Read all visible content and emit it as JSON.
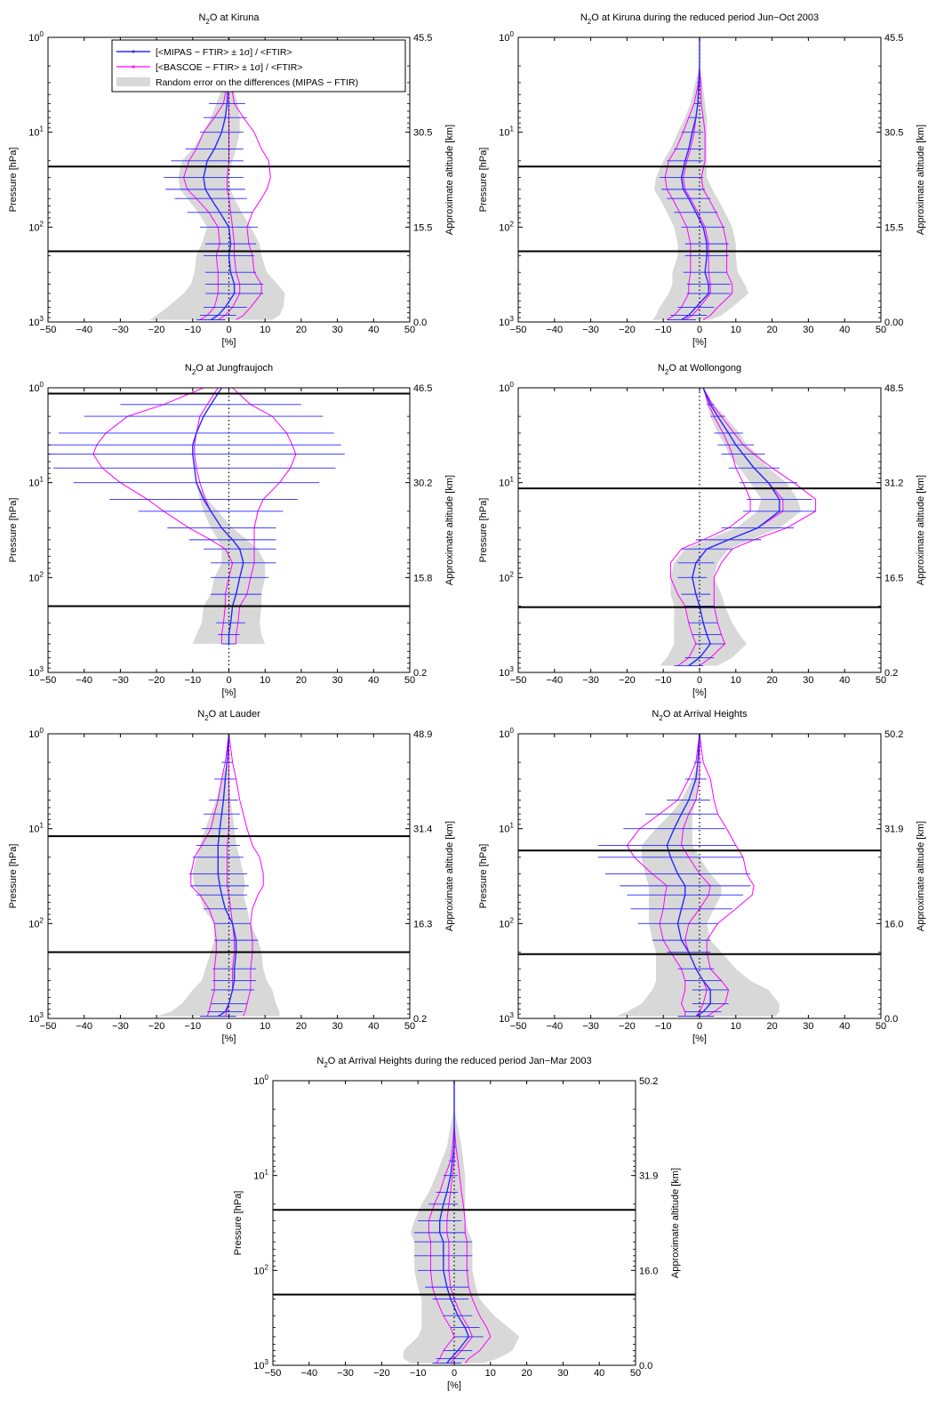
{
  "colors": {
    "mipas": "#2828ff",
    "bascoe": "#ff00ff",
    "random_error": "#d8d8d8",
    "ref_line": "#000000",
    "tropo_line": "#000000"
  },
  "legend": {
    "mipas": "[<MIPAS − FTIR> ± 1σ] / <FTIR>",
    "bascoe": "[<BASCOE − FTIR> ± 1σ] / <FTIR>",
    "random": "Random error on the differences (MIPAS − FTIR)"
  },
  "chart_data": [
    {
      "type": "line",
      "title": "N2O at Kiruna",
      "title_main": "N",
      "title_sub": "2",
      "title_rest": "O at Kiruna",
      "xlabel": "[%]",
      "ylabel": "Pressure [hPa]",
      "ylabel_right": "Approximate altitude [km]",
      "xlim": [
        -50,
        50
      ],
      "ylim": [
        1000,
        1
      ],
      "yscale": "log",
      "xticks": [
        "−50",
        "−40",
        "−30",
        "−20",
        "−10",
        "0",
        "10",
        "20",
        "30",
        "40",
        "50"
      ],
      "yticks": [
        {
          "base": "10",
          "exp": "0",
          "value": 1
        },
        {
          "base": "10",
          "exp": "1",
          "value": 10
        },
        {
          "base": "10",
          "exp": "2",
          "value": 100
        },
        {
          "base": "10",
          "exp": "3",
          "value": 1000
        }
      ],
      "right_ticks": [
        "45.5",
        "30.5",
        "15.5",
        "0.0"
      ],
      "hlines_hPa": [
        23,
        180
      ],
      "legend_placement": "top",
      "pressure": [
        1,
        2,
        3,
        5,
        7,
        10,
        15,
        20,
        30,
        40,
        50,
        70,
        100,
        150,
        200,
        300,
        400,
        500,
        700,
        850,
        950
      ],
      "mipas": [
        0,
        0,
        -0.3,
        -0.5,
        -1,
        -2,
        -4,
        -6,
        -7,
        -6.5,
        -5,
        -2.5,
        0,
        0.5,
        0,
        0.5,
        1.5,
        1.5,
        -1,
        -3,
        -5
      ],
      "mipas_sigma": [
        0,
        0,
        3,
        5,
        6,
        6,
        8,
        10,
        11,
        11,
        10,
        9,
        8,
        7,
        7,
        7,
        8,
        8,
        6,
        5,
        4
      ],
      "bascoe_mean": [
        0,
        0,
        0,
        0,
        0,
        0,
        0,
        0,
        -0.5,
        -0.5,
        0,
        0.5,
        1,
        1.5,
        1.5,
        2,
        3,
        3,
        1,
        -1,
        -3
      ],
      "bascoe_sigma": [
        0,
        0,
        0.5,
        1.5,
        4,
        7,
        9,
        11,
        12,
        11,
        9,
        6,
        4,
        4,
        5,
        5,
        6,
        6,
        5,
        5,
        5
      ],
      "random_error": [
        0,
        0,
        1,
        3,
        4,
        5,
        6,
        7,
        7,
        7,
        6.5,
        6,
        6,
        8,
        9,
        10,
        12,
        14,
        16,
        17,
        17
      ]
    },
    {
      "type": "line",
      "title": "N2O at Kiruna during the reduced period Jun−Oct 2003",
      "title_main": "N",
      "title_sub": "2",
      "title_rest": "O at Kiruna during the reduced period Jun−Oct 2003",
      "xlabel": "[%]",
      "ylabel": "Pressure [hPa]",
      "ylabel_right": "Approximate altitude [km]",
      "xlim": [
        -50,
        50
      ],
      "ylim": [
        1000,
        1
      ],
      "yscale": "log",
      "xticks": [
        "−50",
        "−40",
        "−30",
        "−20",
        "−10",
        "0",
        "10",
        "20",
        "30",
        "40",
        "50"
      ],
      "yticks": [
        {
          "base": "10",
          "exp": "0",
          "value": 1
        },
        {
          "base": "10",
          "exp": "1",
          "value": 10
        },
        {
          "base": "10",
          "exp": "2",
          "value": 100
        },
        {
          "base": "10",
          "exp": "3",
          "value": 1000
        }
      ],
      "right_ticks": [
        "45.5",
        "30.5",
        "15.5",
        "0.00"
      ],
      "hlines_hPa": [
        23,
        180
      ],
      "legend_placement": "none",
      "pressure": [
        1,
        2,
        3,
        5,
        7,
        10,
        15,
        20,
        30,
        40,
        50,
        70,
        100,
        150,
        200,
        300,
        400,
        500,
        700,
        850,
        950
      ],
      "mipas": [
        0,
        0,
        -0.2,
        -0.5,
        -1,
        -2,
        -3,
        -4,
        -5,
        -4.5,
        -3,
        -1,
        1,
        2,
        2,
        1.5,
        2.5,
        2.5,
        -1,
        -3,
        -5
      ],
      "mipas_sigma": [
        0,
        0,
        0.5,
        1,
        2,
        3,
        4,
        5,
        6,
        6,
        6,
        6,
        6,
        6,
        6,
        6,
        6,
        6,
        5,
        5,
        4
      ],
      "bascoe_mean": [
        0,
        0,
        0,
        -0.5,
        -1,
        -1.5,
        -2.5,
        -3.5,
        -4.5,
        -4,
        -2.5,
        -0.5,
        1.5,
        2.5,
        2.5,
        2.5,
        3,
        3,
        0,
        -2,
        -4
      ],
      "bascoe_sigma": [
        0,
        0,
        0.3,
        1,
        2,
        3,
        4,
        5,
        5,
        5,
        5,
        5,
        5,
        5,
        5,
        5,
        6,
        6,
        5,
        5,
        5
      ],
      "random_error": [
        0,
        0,
        1,
        2,
        3,
        4,
        5,
        6,
        7,
        8,
        8,
        8,
        8,
        8,
        8,
        9,
        10,
        11,
        10,
        9,
        8
      ]
    },
    {
      "type": "line",
      "title": "N2O at Jungfraujoch",
      "title_main": "N",
      "title_sub": "2",
      "title_rest": "O at Jungfraujoch",
      "xlabel": "[%]",
      "ylabel": "Pressure [hPa]",
      "ylabel_right": "Approximate altitude [km]",
      "xlim": [
        -50,
        50
      ],
      "ylim": [
        1000,
        1
      ],
      "yscale": "log",
      "xticks": [
        "−50",
        "−40",
        "−30",
        "−20",
        "−10",
        "0",
        "10",
        "20",
        "30",
        "40",
        "50"
      ],
      "yticks": [
        {
          "base": "10",
          "exp": "0",
          "value": 1
        },
        {
          "base": "10",
          "exp": "1",
          "value": 10
        },
        {
          "base": "10",
          "exp": "2",
          "value": 100
        },
        {
          "base": "10",
          "exp": "3",
          "value": 1000
        }
      ],
      "right_ticks": [
        "46.5",
        "30.2",
        "15.8",
        "0.2"
      ],
      "hlines_hPa": [
        1.15,
        200
      ],
      "legend_placement": "none",
      "pressure": [
        1,
        1.5,
        2,
        3,
        4,
        5,
        7,
        10,
        15,
        20,
        30,
        40,
        50,
        70,
        100,
        150,
        200,
        300,
        400,
        500
      ],
      "mipas": [
        -2,
        -5,
        -7,
        -9,
        -10,
        -10,
        -9.5,
        -9,
        -7,
        -5,
        -2,
        1,
        3,
        4,
        3,
        2,
        1,
        0.5,
        0,
        0
      ],
      "mipas_sigma": [
        15,
        25,
        33,
        38,
        41,
        42,
        39,
        34,
        26,
        20,
        15,
        12,
        10,
        9,
        8,
        7,
        5,
        4,
        3,
        2
      ],
      "bascoe_mean": [
        -3,
        -6,
        -8,
        -9,
        -9.5,
        -9.5,
        -9,
        -8,
        -6.5,
        -5,
        -2,
        1,
        3,
        4,
        3,
        2,
        1,
        0.5,
        0,
        0
      ],
      "bascoe_sigma": [
        4,
        12,
        20,
        25,
        27,
        28,
        26,
        22,
        16,
        13,
        9,
        6,
        4,
        3,
        3,
        3,
        2,
        2,
        2,
        2
      ],
      "random_error": [
        0,
        0,
        0,
        0,
        0,
        0,
        0,
        0,
        1,
        2,
        3,
        4,
        5,
        6,
        7,
        7,
        8,
        8,
        9,
        10
      ]
    },
    {
      "type": "line",
      "title": "N2O at Wollongong",
      "title_main": "N",
      "title_sub": "2",
      "title_rest": "O at Wollongong",
      "xlabel": "[%]",
      "ylabel": "Pressure [hPa]",
      "ylabel_right": "Approximate altitude [km]",
      "xlim": [
        -50,
        50
      ],
      "ylim": [
        1000,
        1
      ],
      "yscale": "log",
      "xticks": [
        "−50",
        "−40",
        "−30",
        "−20",
        "−10",
        "0",
        "10",
        "20",
        "30",
        "40",
        "50"
      ],
      "yticks": [
        {
          "base": "10",
          "exp": "0",
          "value": 1
        },
        {
          "base": "10",
          "exp": "1",
          "value": 10
        },
        {
          "base": "10",
          "exp": "2",
          "value": 100
        },
        {
          "base": "10",
          "exp": "3",
          "value": 1000
        }
      ],
      "right_ticks": [
        "48.5",
        "31.2",
        "16.5",
        "0.2"
      ],
      "hlines_hPa": [
        11.5,
        205
      ],
      "legend_placement": "none",
      "pressure": [
        1,
        1.5,
        2,
        3,
        4,
        5,
        7,
        10,
        15,
        20,
        30,
        40,
        50,
        70,
        100,
        150,
        200,
        300,
        400,
        500,
        700,
        850
      ],
      "mipas": [
        1,
        3,
        5,
        8,
        10,
        12,
        15,
        19,
        22,
        22,
        16,
        8,
        2,
        -1,
        -2,
        -1,
        0,
        1,
        2,
        3,
        0,
        -3
      ],
      "mipas_sigma": [
        0,
        1,
        2,
        4,
        5,
        6,
        7,
        8,
        9,
        10,
        10,
        9,
        7,
        5,
        4,
        4,
        4,
        4,
        4,
        4,
        4,
        4
      ],
      "bascoe_mean": [
        1,
        3,
        5,
        8,
        10,
        12,
        15,
        19,
        23,
        23,
        16,
        8,
        2,
        -1,
        -2,
        -1,
        0,
        1,
        2,
        3,
        0,
        -3
      ],
      "bascoe_sigma": [
        0,
        0.5,
        1,
        1.5,
        2,
        3,
        5,
        7,
        9,
        9,
        8,
        7,
        7,
        7,
        6,
        5,
        4,
        4,
        4,
        4,
        3,
        3
      ],
      "random_error": [
        0,
        1,
        2,
        3,
        3,
        4,
        4,
        5,
        5,
        6,
        6,
        6,
        6,
        6,
        6,
        7,
        7,
        8,
        9,
        10,
        9,
        8
      ]
    },
    {
      "type": "line",
      "title": "N2O at Lauder",
      "title_main": "N",
      "title_sub": "2",
      "title_rest": "O at Lauder",
      "xlabel": "[%]",
      "ylabel": "Pressure [hPa]",
      "ylabel_right": "Approximate altitude [km]",
      "xlim": [
        -50,
        50
      ],
      "ylim": [
        1000,
        1
      ],
      "yscale": "log",
      "xticks": [
        "−50",
        "−40",
        "−30",
        "−20",
        "−10",
        "0",
        "10",
        "20",
        "30",
        "40",
        "50"
      ],
      "yticks": [
        {
          "base": "10",
          "exp": "0",
          "value": 1
        },
        {
          "base": "10",
          "exp": "1",
          "value": 10
        },
        {
          "base": "10",
          "exp": "2",
          "value": 100
        },
        {
          "base": "10",
          "exp": "3",
          "value": 1000
        }
      ],
      "right_ticks": [
        "48.9",
        "31.4",
        "16.3",
        "0.2"
      ],
      "hlines_hPa": [
        12,
        200
      ],
      "legend_placement": "none",
      "pressure": [
        1,
        2,
        3,
        5,
        7,
        10,
        15,
        20,
        30,
        40,
        50,
        70,
        100,
        150,
        200,
        300,
        400,
        500,
        700,
        850,
        950
      ],
      "mipas": [
        0,
        -0.5,
        -1,
        -1.5,
        -2,
        -2.5,
        -3,
        -3,
        -3,
        -2.5,
        -2,
        -1,
        1,
        2,
        2,
        1.5,
        1.5,
        1,
        0,
        -1,
        -3
      ],
      "mipas_sigma": [
        0,
        1.5,
        3,
        4,
        5,
        5,
        6,
        7,
        8,
        8,
        7,
        6,
        5,
        6,
        6,
        6,
        6,
        6,
        5,
        5,
        5
      ],
      "bascoe_mean": [
        0,
        0,
        0,
        0,
        0,
        0,
        -0.5,
        -0.5,
        -0.5,
        -0.5,
        0,
        0.5,
        1,
        1.5,
        1.5,
        1,
        1,
        1,
        0,
        -0.5,
        -1
      ],
      "bascoe_sigma": [
        0,
        1,
        2,
        3,
        4,
        5,
        7,
        9,
        10,
        10,
        8,
        6,
        5,
        5,
        5,
        5,
        5,
        5,
        5,
        5,
        5
      ],
      "random_error": [
        0,
        0,
        1,
        2,
        3,
        4,
        5,
        6,
        7,
        7,
        6,
        6,
        5,
        6,
        7,
        8,
        9,
        11,
        13,
        15,
        17
      ]
    },
    {
      "type": "line",
      "title": "N2O at Arrival Heights",
      "title_main": "N",
      "title_sub": "2",
      "title_rest": "O at Arrival Heights",
      "xlabel": "[%]",
      "ylabel": "Pressure [hPa]",
      "ylabel_right": "Approximate altitude [km]",
      "xlim": [
        -50,
        50
      ],
      "ylim": [
        1000,
        1
      ],
      "yscale": "log",
      "xticks": [
        "−50",
        "−40",
        "−30",
        "−20",
        "−10",
        "0",
        "10",
        "20",
        "30",
        "40",
        "50"
      ],
      "yticks": [
        {
          "base": "10",
          "exp": "0",
          "value": 1
        },
        {
          "base": "10",
          "exp": "1",
          "value": 10
        },
        {
          "base": "10",
          "exp": "2",
          "value": 100
        },
        {
          "base": "10",
          "exp": "3",
          "value": 1000
        }
      ],
      "right_ticks": [
        "50.2",
        "31.9",
        "16.0",
        "0.0"
      ],
      "hlines_hPa": [
        17,
        210
      ],
      "legend_placement": "none",
      "pressure": [
        1,
        2,
        3,
        5,
        7,
        10,
        15,
        20,
        30,
        40,
        50,
        70,
        100,
        150,
        200,
        300,
        400,
        500,
        700,
        850,
        950
      ],
      "mipas": [
        0,
        -0.5,
        -1,
        -3,
        -5,
        -7,
        -9,
        -8,
        -6,
        -4,
        -4,
        -5,
        -6,
        -5,
        -3,
        -1,
        1,
        3,
        3,
        1,
        -1
      ],
      "mipas_sigma": [
        0,
        1,
        3,
        6,
        10,
        14,
        19,
        20,
        20,
        18,
        16,
        14,
        11,
        8,
        6,
        5,
        5,
        5,
        5,
        5,
        5
      ],
      "bascoe_mean": [
        0,
        0,
        0,
        -1,
        -3,
        -4.5,
        -5,
        -3,
        0,
        3,
        2.5,
        0,
        -3,
        -4,
        -3,
        -1,
        1,
        2,
        1,
        0,
        -1
      ],
      "bascoe_sigma": [
        0,
        1,
        3,
        5,
        8,
        12,
        15,
        15,
        13,
        12,
        12,
        10,
        8,
        6,
        5,
        4,
        5,
        6,
        6,
        4,
        3
      ],
      "random_error": [
        0,
        0,
        1,
        2,
        3,
        5,
        7,
        8,
        9,
        10,
        10,
        9,
        8,
        8,
        9,
        11,
        13,
        16,
        19,
        21,
        22
      ]
    },
    {
      "type": "line",
      "title": "N2O at Arrival Heights during the reduced period Jan−Mar 2003",
      "title_main": "N",
      "title_sub": "2",
      "title_rest": "O at Arrival Heights during the reduced period Jan−Mar 2003",
      "xlabel": "[%]",
      "ylabel": "Pressure [hPa]",
      "ylabel_right": "Approximate altitude [km]",
      "xlim": [
        -50,
        50
      ],
      "ylim": [
        1000,
        1
      ],
      "yscale": "log",
      "xticks": [
        "−50",
        "−40",
        "−30",
        "−20",
        "−10",
        "0",
        "10",
        "20",
        "30",
        "40",
        "50"
      ],
      "yticks": [
        {
          "base": "10",
          "exp": "0",
          "value": 1
        },
        {
          "base": "10",
          "exp": "1",
          "value": 10
        },
        {
          "base": "10",
          "exp": "2",
          "value": 100
        },
        {
          "base": "10",
          "exp": "3",
          "value": 1000
        }
      ],
      "right_ticks": [
        "50.2",
        "31.9",
        "16.0",
        "0.0"
      ],
      "hlines_hPa": [
        23,
        180
      ],
      "legend_placement": "none",
      "pressure": [
        1,
        2,
        3,
        5,
        7,
        10,
        15,
        20,
        30,
        40,
        50,
        70,
        100,
        150,
        200,
        300,
        400,
        500,
        700,
        850,
        950
      ],
      "mipas": [
        0,
        0,
        0,
        0,
        -0.5,
        -1,
        -2,
        -3,
        -4,
        -4,
        -3,
        -3,
        -3,
        -2,
        -1,
        1,
        3,
        4,
        1,
        -1,
        -2
      ],
      "mipas_sigma": [
        0,
        0,
        0,
        0.5,
        1,
        2,
        3,
        4,
        6,
        7,
        8,
        8,
        7,
        6,
        5,
        4,
        4,
        4,
        4,
        4,
        4
      ],
      "bascoe_mean": [
        0,
        0,
        0,
        0,
        0,
        -0.5,
        -1,
        -1.5,
        -2,
        -2,
        -1.5,
        -1.5,
        -1.5,
        -1,
        0,
        2,
        4,
        5,
        2,
        0,
        -1
      ],
      "bascoe_sigma": [
        0,
        0,
        0,
        0.5,
        1,
        2,
        3,
        4,
        5,
        5,
        5,
        5,
        5,
        5,
        5,
        5,
        5,
        5,
        5,
        4,
        4
      ],
      "random_error": [
        0,
        0,
        1,
        2,
        3,
        4,
        5,
        6,
        7,
        8,
        8,
        8,
        8,
        8,
        8,
        10,
        12,
        14,
        15,
        13,
        10
      ]
    }
  ]
}
